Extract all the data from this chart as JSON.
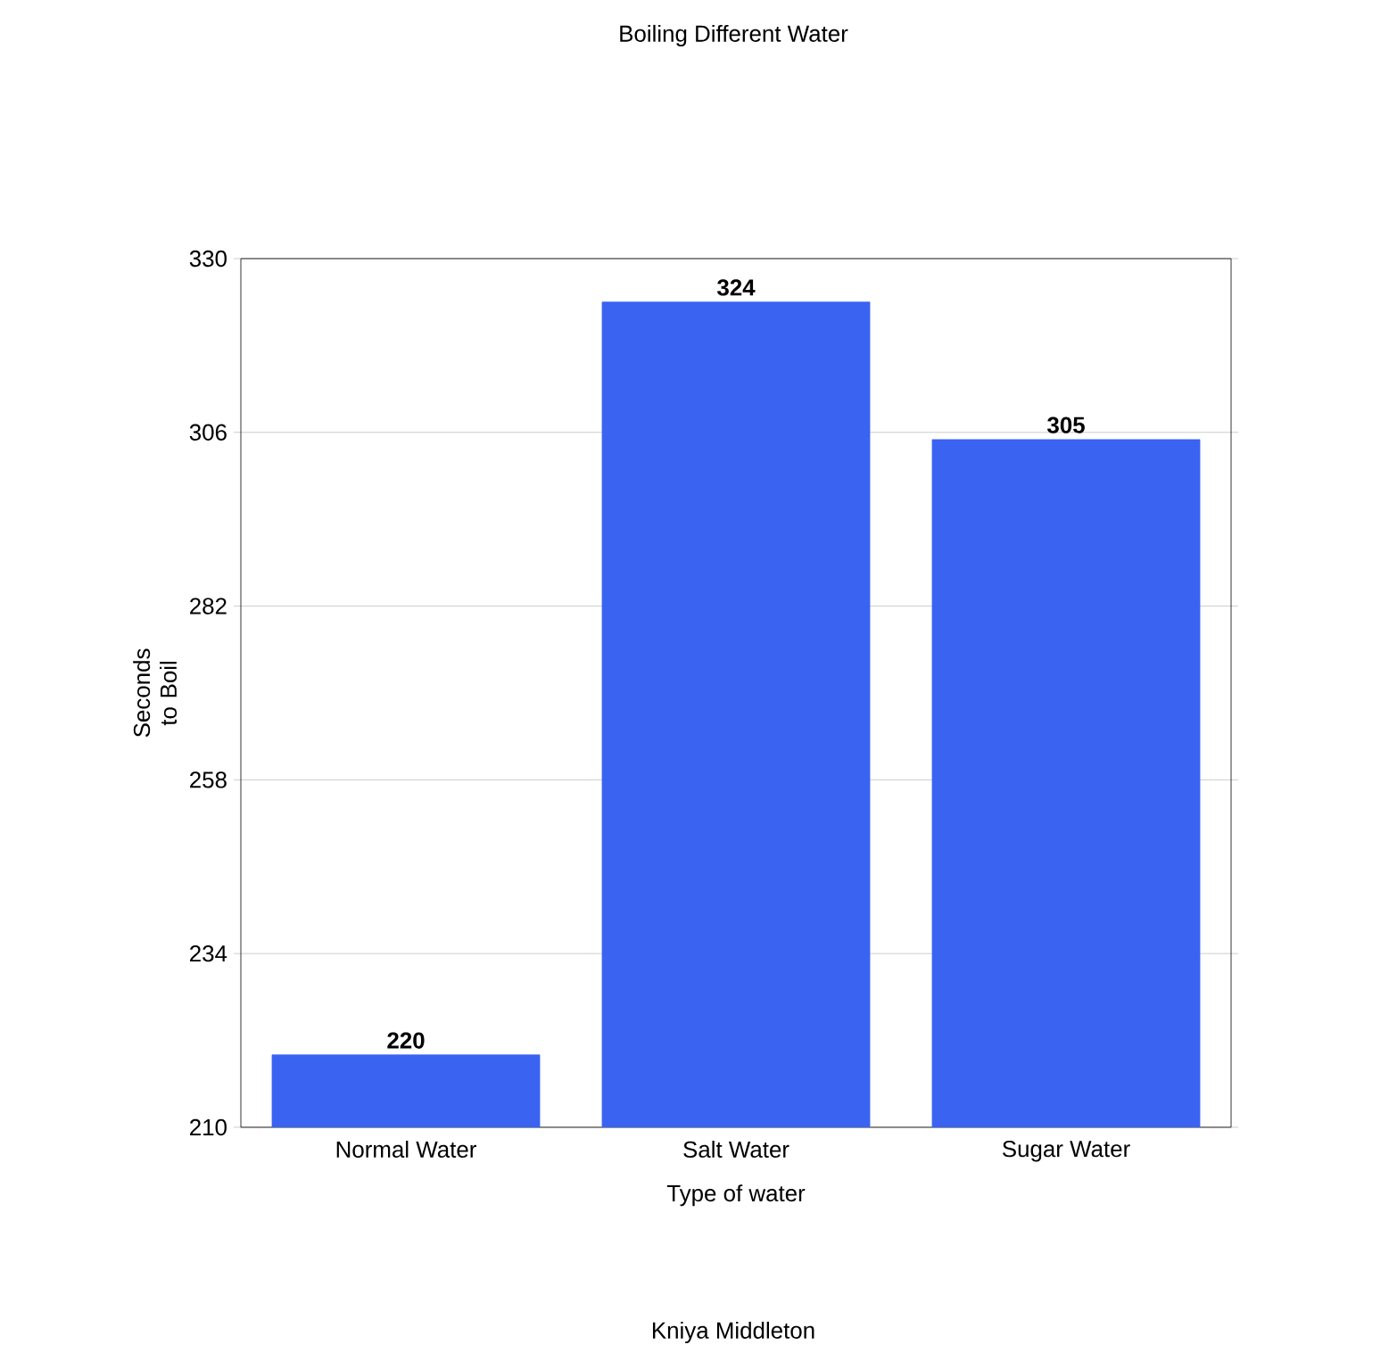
{
  "chart_data": {
    "type": "bar",
    "title": "Boiling Different Water",
    "xlabel": "Type of water",
    "ylabel": "Seconds to Boil",
    "categories": [
      "Normal Water",
      "Salt Water",
      "Sugar Water"
    ],
    "values": [
      220,
      324,
      305
    ],
    "color": "#3a63f2",
    "ylim": [
      210,
      330
    ],
    "yticks": [
      210,
      234,
      258,
      282,
      306,
      330
    ],
    "grid": "y",
    "data_labels": true,
    "annotations": [
      "Kniya Middleton"
    ]
  }
}
